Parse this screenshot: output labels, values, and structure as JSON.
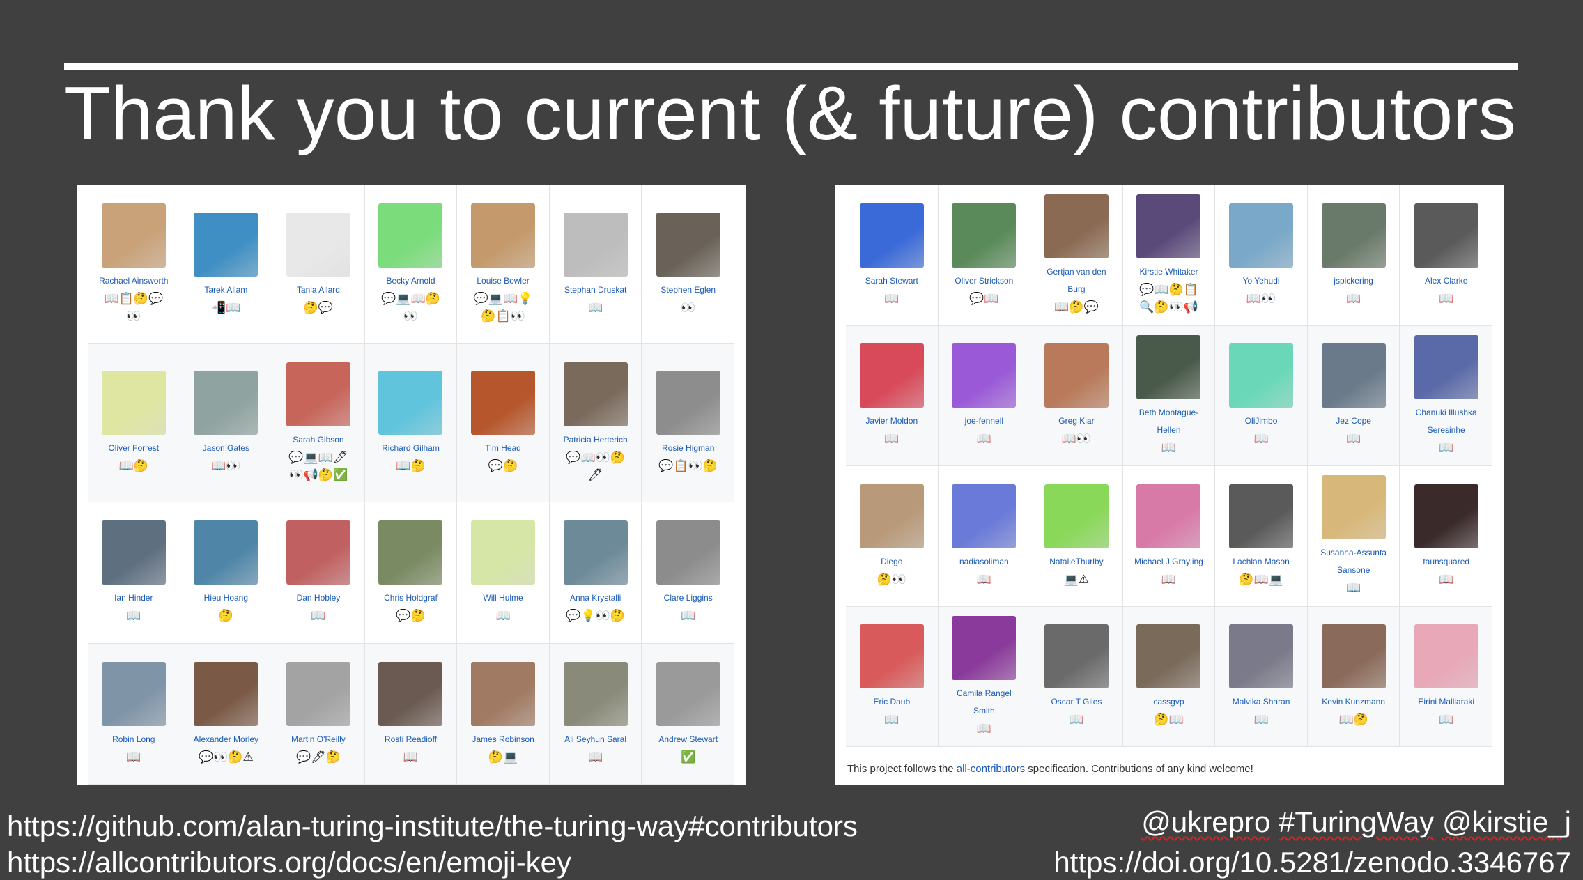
{
  "slide": {
    "title": "Thank you to current (& future) contributors",
    "links_left": [
      "https://github.com/alan-turing-institute/the-turing-way#contributors",
      "https://allcontributors.org/docs/en/emoji-key"
    ],
    "handle_ukrepro": "@ukrepro",
    "handle_hashtag": "#TuringWay",
    "handle_kirstie": "@kirstie_j",
    "doi": "https://doi.org/10.5281/zenodo.3346767",
    "footer_prefix": "This project follows the",
    "footer_link": "all-contributors",
    "footer_suffix": "specification. Contributions of any kind welcome!"
  },
  "colors": {
    "background": "#404040",
    "panel": "#ffffff",
    "name_link": "#1a5ab8",
    "row_alt": "#f6f8fa",
    "wavy_underline": "#e02020"
  },
  "icon_legend": {
    "book": "📖",
    "doc": "📋",
    "think": "🤔",
    "comment": "💬",
    "eyes": "👀",
    "device": "📲",
    "laptop": "💻",
    "bulb": "💡",
    "pencil": "🖊",
    "check": "✅",
    "speaker": "📢",
    "search": "🔍",
    "warning": "⚠",
    "bug": "🐛"
  },
  "contributors_left": [
    {
      "name": "Rachael Ainsworth",
      "color": "#c9a27a",
      "badges": [
        "📖",
        "📋",
        "🤔",
        "💬",
        "👀"
      ]
    },
    {
      "name": "Tarek Allam",
      "color": "#3f8fc4",
      "badges": [
        "📲",
        "📖"
      ]
    },
    {
      "name": "Tania Allard",
      "color": "#e8e8e8",
      "badges": [
        "🤔",
        "💬"
      ]
    },
    {
      "name": "Becky Arnold",
      "color": "#7bdc7b",
      "badges": [
        "💬",
        "💻",
        "📖",
        "🤔",
        "👀"
      ]
    },
    {
      "name": "Louise Bowler",
      "color": "#c49a6c",
      "badges": [
        "💬",
        "💻",
        "📖",
        "💡",
        "🤔",
        "📋",
        "👀"
      ]
    },
    {
      "name": "Stephan Druskat",
      "color": "#bdbdbd",
      "badges": [
        "📖"
      ]
    },
    {
      "name": "Stephen Eglen",
      "color": "#6a6258",
      "badges": [
        "👀"
      ]
    },
    {
      "name": "Oliver Forrest",
      "color": "#dfe6a2",
      "badges": [
        "📖",
        "🤔"
      ]
    },
    {
      "name": "Jason Gates",
      "color": "#8fa3a0",
      "badges": [
        "📖",
        "👀"
      ]
    },
    {
      "name": "Sarah Gibson",
      "color": "#c7655a",
      "badges": [
        "💬",
        "💻",
        "📖",
        "🖊",
        "👀",
        "📢",
        "🤔",
        "✅"
      ]
    },
    {
      "name": "Richard Gilham",
      "color": "#5fc4dc",
      "badges": [
        "📖",
        "🤔"
      ]
    },
    {
      "name": "Tim Head",
      "color": "#b6562c",
      "badges": [
        "💬",
        "🤔"
      ]
    },
    {
      "name": "Patricia Herterich",
      "color": "#7a6a5c",
      "badges": [
        "💬",
        "📖",
        "👀",
        "🤔",
        "🖊"
      ]
    },
    {
      "name": "Rosie Higman",
      "color": "#8d8d8d",
      "badges": [
        "💬",
        "📋",
        "👀",
        "🤔"
      ]
    },
    {
      "name": "Ian Hinder",
      "color": "#5e6f80",
      "badges": [
        "📖"
      ]
    },
    {
      "name": "Hieu Hoang",
      "color": "#4f86a8",
      "badges": [
        "🤔"
      ]
    },
    {
      "name": "Dan Hobley",
      "color": "#c06060",
      "badges": [
        "📖"
      ]
    },
    {
      "name": "Chris Holdgraf",
      "color": "#7a8a62",
      "badges": [
        "💬",
        "🤔"
      ]
    },
    {
      "name": "Will Hulme",
      "color": "#d6e6a6",
      "badges": [
        "📖"
      ]
    },
    {
      "name": "Anna Krystalli",
      "color": "#6d8a99",
      "badges": [
        "💬",
        "💡",
        "👀",
        "🤔"
      ]
    },
    {
      "name": "Clare Liggins",
      "color": "#8c8c8c",
      "badges": [
        "📖"
      ]
    },
    {
      "name": "Robin Long",
      "color": "#8094a8",
      "badges": [
        "📖"
      ]
    },
    {
      "name": "Alexander Morley",
      "color": "#7a5a46",
      "badges": [
        "💬",
        "👀",
        "🤔",
        "⚠"
      ]
    },
    {
      "name": "Martin O'Reilly",
      "color": "#a3a3a3",
      "badges": [
        "💬",
        "🖊",
        "🤔"
      ]
    },
    {
      "name": "Rosti Readioff",
      "color": "#6a5a52",
      "badges": [
        "📖"
      ]
    },
    {
      "name": "James Robinson",
      "color": "#a07a62",
      "badges": [
        "🤔",
        "💻"
      ]
    },
    {
      "name": "Ali Seyhun Saral",
      "color": "#8a8a7a",
      "badges": [
        "📖"
      ]
    },
    {
      "name": "Andrew Stewart",
      "color": "#9a9a9a",
      "badges": [
        "✅"
      ]
    }
  ],
  "contributors_right": [
    {
      "name": "Sarah Stewart",
      "color": "#3a6ad8",
      "badges": [
        "📖"
      ]
    },
    {
      "name": "Oliver Strickson",
      "color": "#5a8a5a",
      "badges": [
        "💬",
        "📖"
      ]
    },
    {
      "name": "Gertjan van den Burg",
      "color": "#8a6a52",
      "badges": [
        "📖",
        "🤔",
        "💬"
      ]
    },
    {
      "name": "Kirstie Whitaker",
      "color": "#5a4a7a",
      "badges": [
        "💬",
        "📖",
        "🤔",
        "📋",
        "🔍",
        "🤔",
        "👀",
        "📢"
      ]
    },
    {
      "name": "Yo Yehudi",
      "color": "#7aa8c8",
      "badges": [
        "📖",
        "👀"
      ]
    },
    {
      "name": "jspickering",
      "color": "#6a7a6a",
      "badges": [
        "📖"
      ]
    },
    {
      "name": "Alex Clarke",
      "color": "#5a5a5a",
      "badges": [
        "📖"
      ]
    },
    {
      "name": "Javier Moldon",
      "color": "#d84a5a",
      "badges": [
        "📖"
      ]
    },
    {
      "name": "joe-fennell",
      "color": "#9a5ad8",
      "badges": [
        "📖"
      ]
    },
    {
      "name": "Greg Kiar",
      "color": "#b87a5a",
      "badges": [
        "📖",
        "👀"
      ]
    },
    {
      "name": "Beth Montague-Hellen",
      "color": "#4a5a4a",
      "badges": [
        "📖"
      ]
    },
    {
      "name": "OliJimbo",
      "color": "#6ad8b8",
      "badges": [
        "📖"
      ]
    },
    {
      "name": "Jez Cope",
      "color": "#6a7a8a",
      "badges": [
        "📖"
      ]
    },
    {
      "name": "Chanuki Illushka Seresinhe",
      "color": "#5a6aa8",
      "badges": [
        "📖"
      ]
    },
    {
      "name": "Diego",
      "color": "#b89a7a",
      "badges": [
        "🤔",
        "👀"
      ]
    },
    {
      "name": "nadiasoliman",
      "color": "#6a7ad8",
      "badges": [
        "📖"
      ]
    },
    {
      "name": "NatalieThurlby",
      "color": "#8ad85a",
      "badges": [
        "💻",
        "⚠"
      ]
    },
    {
      "name": "Michael J Grayling",
      "color": "#d87aa8",
      "badges": [
        "📖"
      ]
    },
    {
      "name": "Lachlan Mason",
      "color": "#5a5a5a",
      "badges": [
        "🤔",
        "📖",
        "💻"
      ]
    },
    {
      "name": "Susanna-Assunta Sansone",
      "color": "#d8b87a",
      "badges": [
        "📖"
      ]
    },
    {
      "name": "taunsquared",
      "color": "#3a2a2a",
      "badges": [
        "📖"
      ]
    },
    {
      "name": "Eric Daub",
      "color": "#d85a5a",
      "badges": [
        "📖"
      ]
    },
    {
      "name": "Camila Rangel Smith",
      "color": "#8a3a9a",
      "badges": [
        "📖"
      ]
    },
    {
      "name": "Oscar T Giles",
      "color": "#6a6a6a",
      "badges": [
        "📖"
      ]
    },
    {
      "name": "cassgvp",
      "color": "#7a6a5a",
      "badges": [
        "🤔",
        "📖"
      ]
    },
    {
      "name": "Malvika Sharan",
      "color": "#7a7a8a",
      "badges": [
        "📖"
      ]
    },
    {
      "name": "Kevin Kunzmann",
      "color": "#8a6a5a",
      "badges": [
        "📖",
        "🤔"
      ]
    },
    {
      "name": "Eirini Malliaraki",
      "color": "#e8a8b8",
      "badges": [
        "📖"
      ]
    }
  ]
}
